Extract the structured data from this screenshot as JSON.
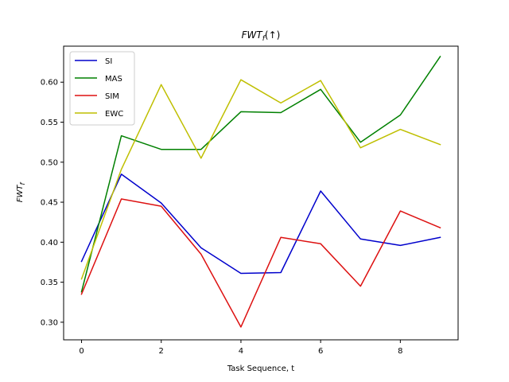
{
  "chart_data": {
    "type": "line",
    "title": "FWT_f(↑)",
    "title_main": "FWT",
    "title_sub": "f",
    "title_suffix": "(↑)",
    "xlabel": "Task Sequence, t",
    "ylabel_main": "FWT",
    "ylabel_sub": "f",
    "xlim": [
      -0.45,
      9.45
    ],
    "ylim": [
      0.278,
      0.645
    ],
    "xticks": [
      0,
      2,
      4,
      6,
      8
    ],
    "xtick_labels": [
      "0",
      "2",
      "4",
      "6",
      "8"
    ],
    "yticks": [
      0.3,
      0.35,
      0.4,
      0.45,
      0.5,
      0.55,
      0.6
    ],
    "ytick_labels": [
      "0.30",
      "0.35",
      "0.40",
      "0.45",
      "0.50",
      "0.55",
      "0.60"
    ],
    "grid": false,
    "legend_position": "upper-left",
    "x": [
      0,
      1,
      2,
      3,
      4,
      5,
      6,
      7,
      8,
      9
    ],
    "series": [
      {
        "name": "SI",
        "color": "#0000cc",
        "values": [
          0.376,
          0.485,
          0.449,
          0.393,
          0.361,
          0.362,
          0.464,
          0.404,
          0.396,
          0.406
        ]
      },
      {
        "name": "MAS",
        "color": "#008000",
        "values": [
          0.338,
          0.533,
          0.516,
          0.516,
          0.563,
          0.562,
          0.591,
          0.525,
          0.559,
          0.632
        ]
      },
      {
        "name": "SIM",
        "color": "#dd1111",
        "values": [
          0.335,
          0.454,
          0.445,
          0.385,
          0.294,
          0.406,
          0.398,
          0.345,
          0.439,
          0.418
        ]
      },
      {
        "name": "EWC",
        "color": "#bfbf00",
        "values": [
          0.354,
          0.491,
          0.597,
          0.505,
          0.603,
          0.574,
          0.602,
          0.518,
          0.541,
          0.522
        ]
      }
    ]
  }
}
